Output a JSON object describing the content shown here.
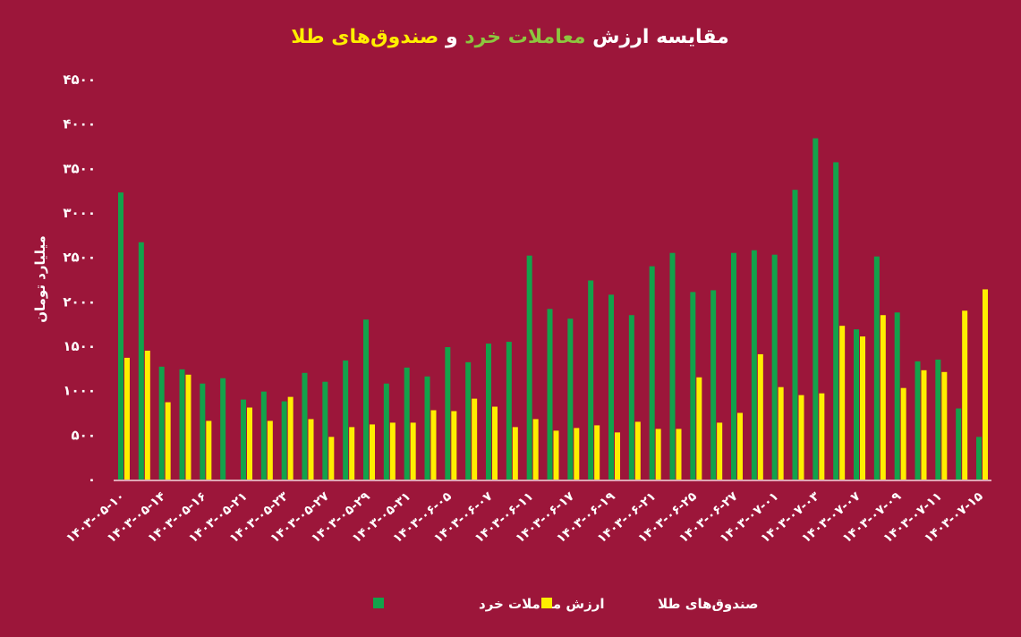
{
  "chart_data": {
    "type": "bar",
    "title_parts": [
      {
        "text": "مقایسه ارزش ",
        "color": "#ffffff"
      },
      {
        "text": "معاملات خرد",
        "color": "#8cc63f"
      },
      {
        "text": " و ",
        "color": "#ffffff"
      },
      {
        "text": "صندوق‌های طلا",
        "color": "#ffee00"
      }
    ],
    "ylabel": "میلیارد تومان",
    "xlabel": "",
    "ylim": [
      0,
      4500
    ],
    "yticks": [
      0,
      500,
      1000,
      1500,
      2000,
      2500,
      3000,
      3500,
      4000,
      4500
    ],
    "ytick_labels": [
      "۰",
      "۵۰۰",
      "۱۰۰۰",
      "۱۵۰۰",
      "۲۰۰۰",
      "۲۵۰۰",
      "۳۰۰۰",
      "۳۵۰۰",
      "۴۰۰۰",
      "۴۵۰۰"
    ],
    "categories": [
      "۱۴۰۳-۰۵-۱۰",
      "",
      "۱۴۰۳-۰۵-۱۴",
      "",
      "۱۴۰۳-۰۵-۱۶",
      "",
      "۱۴۰۳-۰۵-۲۱",
      "",
      "۱۴۰۳-۰۵-۲۳",
      "",
      "۱۴۰۳-۰۵-۲۷",
      "",
      "۱۴۰۳-۰۵-۲۹",
      "",
      "۱۴۰۳-۰۵-۳۱",
      "",
      "۱۴۰۳-۰۶-۰۵",
      "",
      "۱۴۰۳-۰۶-۰۷",
      "",
      "۱۴۰۳-۰۶-۱۱",
      "",
      "۱۴۰۳-۰۶-۱۷",
      "",
      "۱۴۰۳-۰۶-۱۹",
      "",
      "۱۴۰۳-۰۶-۲۱",
      "",
      "۱۴۰۳-۰۶-۲۵",
      "",
      "۱۴۰۳-۰۶-۲۷",
      "",
      "۱۴۰۳-۰۷-۰۱",
      "",
      "۱۴۰۳-۰۷-۰۳",
      "",
      "۱۴۰۳-۰۷-۰۷",
      "",
      "۱۴۰۳-۰۷-۰۹",
      "",
      "۱۴۰۳-۰۷-۱۱",
      "",
      "۱۴۰۳-۰۷-۱۵"
    ],
    "series": [
      {
        "name": "ارزش معاملات خرد",
        "color": "#12a24b",
        "values": [
          3230,
          2670,
          1270,
          1240,
          1080,
          1140,
          900,
          990,
          880,
          1200,
          1100,
          1340,
          1800,
          1080,
          1260,
          1160,
          1490,
          1320,
          1530,
          1550,
          2520,
          1920,
          1810,
          2240,
          2080,
          1850,
          2400,
          2550,
          2110,
          2130,
          2550,
          2580,
          2530,
          3260,
          3840,
          3570,
          1690,
          2510,
          1880,
          1330,
          1350,
          800,
          480
        ]
      },
      {
        "name": "صندوق‌های طلا",
        "color": "#ffee00",
        "values": [
          1370,
          1450,
          870,
          1180,
          660,
          0,
          810,
          660,
          930,
          680,
          480,
          590,
          620,
          640,
          640,
          780,
          770,
          910,
          820,
          590,
          680,
          550,
          580,
          610,
          530,
          650,
          570,
          570,
          1150,
          640,
          750,
          1410,
          1040,
          950,
          970,
          1730,
          1610,
          1850,
          1030,
          1230,
          1210,
          1900,
          2140
        ]
      }
    ],
    "legend_position": "bottom-center",
    "grid": false
  }
}
